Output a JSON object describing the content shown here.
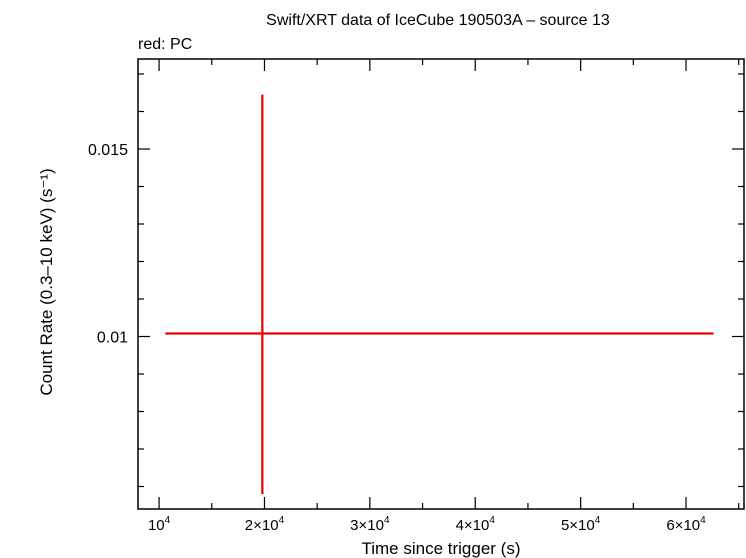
{
  "chart_data": {
    "type": "scatter",
    "title": "Swift/XRT data of IceCube 190503A – source 13",
    "subtitle": "red: PC",
    "xlabel": "Time since trigger (s)",
    "ylabel": "Count Rate (0.3–10 keV) (s⁻¹)",
    "xlim": [
      8000,
      65500
    ],
    "ylim": [
      0.0054,
      0.0174
    ],
    "grid": false,
    "x_ticks": [
      {
        "value": 10000,
        "mant": "10",
        "exp": "4"
      },
      {
        "value": 20000,
        "mant": "2×10",
        "exp": "4"
      },
      {
        "value": 30000,
        "mant": "3×10",
        "exp": "4"
      },
      {
        "value": 40000,
        "mant": "4×10",
        "exp": "4"
      },
      {
        "value": 50000,
        "mant": "5×10",
        "exp": "4"
      },
      {
        "value": 60000,
        "mant": "6×10",
        "exp": "4"
      }
    ],
    "x_minor_ticks": [
      15000,
      25000,
      35000,
      45000,
      55000,
      65000
    ],
    "y_ticks": [
      {
        "value": 0.01,
        "label": "0.01"
      },
      {
        "value": 0.015,
        "label": "0.015"
      }
    ],
    "y_minor_ticks": [
      0.006,
      0.007,
      0.008,
      0.009,
      0.011,
      0.012,
      0.013,
      0.014,
      0.016,
      0.017
    ],
    "series": [
      {
        "color": "#e60000",
        "points": [
          {
            "x": 19800,
            "y": 0.01008,
            "x_low": 10600,
            "x_high": 62600,
            "y_low": 0.0058,
            "y_high": 0.01645
          }
        ]
      }
    ]
  }
}
